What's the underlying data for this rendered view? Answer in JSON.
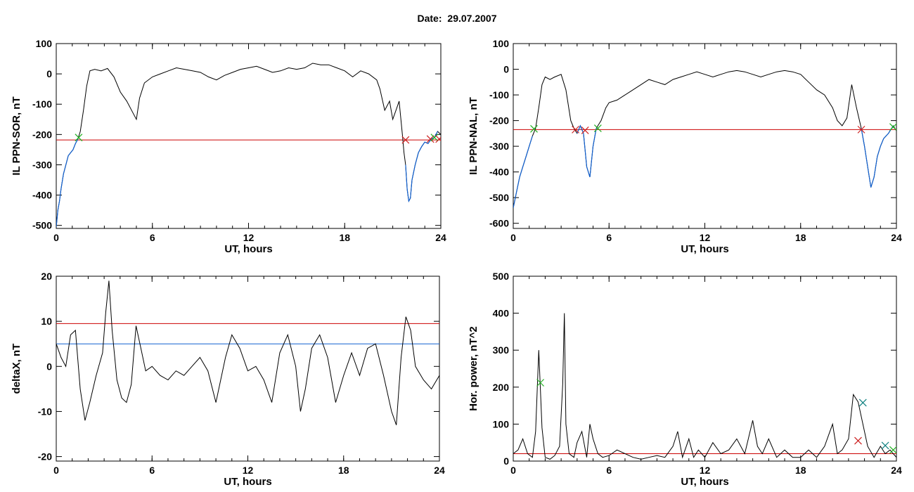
{
  "header": {
    "date_label": "Date:",
    "date_value": "29.07.2007"
  },
  "colors": {
    "curve": "#000000",
    "threshold": "#cc0000",
    "blue": "#1060d0",
    "green_marker": "#20b020",
    "red_marker": "#cc2020",
    "blue_marker": "#108080"
  },
  "chart_data": [
    {
      "id": "sor",
      "type": "line",
      "title": "",
      "xlabel": "UT, hours",
      "ylabel": "IL PPN-SOR, nT",
      "xlim": [
        0,
        24
      ],
      "ylim": [
        -510,
        100
      ],
      "xticks": [
        0,
        6,
        12,
        18,
        24
      ],
      "yticks": [
        -500,
        -400,
        -300,
        -200,
        -100,
        0,
        100
      ],
      "threshold": -218,
      "series": [
        {
          "x": [
            0,
            0.1,
            0.2,
            0.3,
            0.45,
            0.6,
            0.75,
            0.9,
            1.05,
            1.2,
            1.35,
            1.5,
            1.7,
            1.9,
            2.1,
            2.4,
            2.8,
            3.2,
            3.6,
            4.0,
            4.4,
            4.8,
            5.0,
            5.2,
            5.5,
            6.0,
            6.5,
            7.0,
            7.5,
            8.0,
            8.5,
            9.0,
            9.5,
            10.0,
            10.5,
            11.0,
            11.5,
            12.0,
            12.5,
            13.0,
            13.5,
            14.0,
            14.5,
            15.0,
            15.5,
            16.0,
            16.5,
            17.0,
            17.5,
            18.0,
            18.5,
            19.0,
            19.5,
            20.0,
            20.2,
            20.5,
            20.8,
            21.0,
            21.2,
            21.4,
            21.6,
            21.7,
            21.8,
            21.9,
            22.0,
            22.1,
            22.2,
            22.4,
            22.6,
            22.8,
            23.0,
            23.2,
            23.4,
            23.6,
            23.8,
            24.0
          ],
          "y": [
            -505,
            -450,
            -420,
            -380,
            -330,
            -300,
            -270,
            -260,
            -250,
            -230,
            -215,
            -190,
            -120,
            -40,
            10,
            15,
            10,
            18,
            -10,
            -60,
            -90,
            -130,
            -150,
            -80,
            -30,
            -10,
            0,
            10,
            20,
            15,
            10,
            5,
            -10,
            -20,
            -5,
            5,
            15,
            20,
            25,
            15,
            5,
            10,
            20,
            15,
            20,
            35,
            30,
            30,
            20,
            10,
            -10,
            10,
            0,
            -20,
            -50,
            -120,
            -90,
            -150,
            -120,
            -90,
            -200,
            -260,
            -300,
            -380,
            -420,
            -410,
            -350,
            -300,
            -260,
            -240,
            -225,
            -230,
            -215,
            -210,
            -190,
            -200
          ]
        }
      ],
      "markers": [
        {
          "x": 1.4,
          "y": -210,
          "color": "green"
        },
        {
          "x": 21.8,
          "y": -218,
          "color": "red"
        },
        {
          "x": 23.35,
          "y": -215,
          "color": "red"
        },
        {
          "x": 23.6,
          "y": -210,
          "color": "green"
        },
        {
          "x": 23.9,
          "y": -215,
          "color": "red"
        }
      ],
      "blue_segments": [
        [
          0,
          1.4
        ],
        [
          21.8,
          23.9
        ]
      ]
    },
    {
      "id": "nal",
      "type": "line",
      "title": "",
      "xlabel": "UT, hours",
      "ylabel": "IL PPN-NAL, nT",
      "xlim": [
        0,
        24
      ],
      "ylim": [
        -620,
        100
      ],
      "xticks": [
        0,
        6,
        12,
        18,
        24
      ],
      "yticks": [
        -600,
        -500,
        -400,
        -300,
        -200,
        -100,
        0,
        100
      ],
      "threshold": -235,
      "series": [
        {
          "x": [
            0,
            0.2,
            0.4,
            0.6,
            0.8,
            1.0,
            1.2,
            1.4,
            1.6,
            1.8,
            2.0,
            2.3,
            2.6,
            3.0,
            3.3,
            3.6,
            3.8,
            4.0,
            4.2,
            4.4,
            4.6,
            4.8,
            5.0,
            5.2,
            5.5,
            5.8,
            6.0,
            6.5,
            7.0,
            7.5,
            8.0,
            8.5,
            9.0,
            9.5,
            10.0,
            10.5,
            11.0,
            11.5,
            12.0,
            12.5,
            13.0,
            13.5,
            14.0,
            14.5,
            15.0,
            15.5,
            16.0,
            16.5,
            17.0,
            17.5,
            18.0,
            18.5,
            19.0,
            19.5,
            20.0,
            20.3,
            20.6,
            20.9,
            21.2,
            21.5,
            21.8,
            22.0,
            22.2,
            22.4,
            22.6,
            22.8,
            23.0,
            23.2,
            23.5,
            23.8,
            24.0
          ],
          "y": [
            -540,
            -480,
            -420,
            -380,
            -340,
            -300,
            -260,
            -230,
            -150,
            -60,
            -30,
            -40,
            -30,
            -20,
            -80,
            -200,
            -230,
            -250,
            -220,
            -250,
            -380,
            -420,
            -300,
            -230,
            -200,
            -150,
            -130,
            -120,
            -100,
            -80,
            -60,
            -40,
            -50,
            -60,
            -40,
            -30,
            -20,
            -10,
            -20,
            -30,
            -20,
            -10,
            -5,
            -10,
            -20,
            -30,
            -20,
            -10,
            -5,
            -10,
            -20,
            -50,
            -80,
            -100,
            -150,
            -200,
            -220,
            -190,
            -60,
            -150,
            -230,
            -300,
            -380,
            -460,
            -420,
            -340,
            -300,
            -270,
            -250,
            -220,
            -240
          ]
        }
      ],
      "markers": [
        {
          "x": 1.3,
          "y": -232,
          "color": "green"
        },
        {
          "x": 3.9,
          "y": -235,
          "color": "red"
        },
        {
          "x": 4.5,
          "y": -238,
          "color": "red"
        },
        {
          "x": 5.3,
          "y": -230,
          "color": "green"
        },
        {
          "x": 21.8,
          "y": -235,
          "color": "red"
        },
        {
          "x": 23.8,
          "y": -225,
          "color": "green"
        }
      ],
      "blue_segments": [
        [
          0,
          1.3
        ],
        [
          3.9,
          5.3
        ],
        [
          21.8,
          23.8
        ]
      ]
    },
    {
      "id": "deltax",
      "type": "line",
      "title": "",
      "xlabel": "UT, hours",
      "ylabel": "deltaX, nT",
      "xlim": [
        0,
        24
      ],
      "ylim": [
        -21,
        20
      ],
      "xticks": [
        0,
        6,
        12,
        18,
        24
      ],
      "yticks": [
        -20,
        -10,
        0,
        10,
        20
      ],
      "thresholds": [
        {
          "value": 9.5,
          "color": "red"
        },
        {
          "value": 5,
          "color": "blue"
        }
      ],
      "series": [
        {
          "x": [
            0,
            0.3,
            0.6,
            0.9,
            1.2,
            1.5,
            1.8,
            2.1,
            2.5,
            2.9,
            3.1,
            3.3,
            3.5,
            3.8,
            4.1,
            4.4,
            4.7,
            5.0,
            5.3,
            5.6,
            6.0,
            6.5,
            7.0,
            7.5,
            8.0,
            8.5,
            9.0,
            9.5,
            10.0,
            10.3,
            10.6,
            11.0,
            11.5,
            12.0,
            12.5,
            13.0,
            13.5,
            14.0,
            14.5,
            15.0,
            15.3,
            15.6,
            16.0,
            16.5,
            17.0,
            17.5,
            18.0,
            18.5,
            19.0,
            19.5,
            20.0,
            20.5,
            21.0,
            21.3,
            21.6,
            21.9,
            22.2,
            22.5,
            23.0,
            23.5,
            24.0
          ],
          "y": [
            5,
            2,
            0,
            7,
            8,
            -5,
            -12,
            -8,
            -2,
            3,
            12,
            19,
            8,
            -3,
            -7,
            -8,
            -4,
            9,
            4,
            -1,
            0,
            -2,
            -3,
            -1,
            -2,
            0,
            2,
            -1,
            -8,
            -3,
            2,
            7,
            4,
            -1,
            0,
            -3,
            -8,
            3,
            7,
            0,
            -10,
            -5,
            4,
            7,
            2,
            -8,
            -2,
            3,
            -2,
            4,
            5,
            -2,
            -10,
            -13,
            2,
            11,
            8,
            0,
            -3,
            -5,
            -2
          ]
        }
      ]
    },
    {
      "id": "power",
      "type": "line",
      "title": "",
      "xlabel": "UT, hours",
      "ylabel": "Hor. power, nT^2",
      "xlim": [
        0,
        24
      ],
      "ylim": [
        0,
        500
      ],
      "xticks": [
        0,
        6,
        12,
        18,
        24
      ],
      "yticks": [
        0,
        100,
        200,
        300,
        400,
        500
      ],
      "threshold": 20,
      "series": [
        {
          "x": [
            0,
            0.3,
            0.6,
            0.9,
            1.2,
            1.4,
            1.6,
            1.8,
            2.0,
            2.3,
            2.6,
            2.9,
            3.1,
            3.2,
            3.3,
            3.5,
            3.8,
            4.0,
            4.3,
            4.6,
            4.8,
            5.0,
            5.3,
            5.6,
            6.0,
            6.5,
            7.0,
            7.5,
            8.0,
            8.5,
            9.0,
            9.5,
            10.0,
            10.3,
            10.6,
            11.0,
            11.3,
            11.6,
            12.0,
            12.5,
            13.0,
            13.5,
            14.0,
            14.5,
            15.0,
            15.3,
            15.6,
            16.0,
            16.5,
            17.0,
            17.5,
            18.0,
            18.5,
            19.0,
            19.5,
            20.0,
            20.3,
            20.6,
            21.0,
            21.3,
            21.6,
            21.9,
            22.2,
            22.6,
            23.0,
            23.3,
            23.6,
            24.0
          ],
          "y": [
            20,
            30,
            60,
            20,
            10,
            80,
            300,
            90,
            10,
            5,
            15,
            40,
            210,
            400,
            100,
            20,
            10,
            50,
            80,
            10,
            100,
            60,
            20,
            10,
            15,
            30,
            20,
            10,
            5,
            10,
            15,
            10,
            40,
            80,
            10,
            60,
            10,
            30,
            10,
            50,
            20,
            30,
            60,
            20,
            110,
            40,
            20,
            60,
            10,
            30,
            10,
            10,
            30,
            10,
            40,
            100,
            20,
            30,
            60,
            180,
            160,
            100,
            40,
            10,
            40,
            20,
            30,
            10
          ]
        }
      ],
      "markers": [
        {
          "x": 1.7,
          "y": 212,
          "color": "green"
        },
        {
          "x": 21.6,
          "y": 55,
          "color": "red"
        },
        {
          "x": 21.9,
          "y": 158,
          "color": "blue"
        },
        {
          "x": 23.3,
          "y": 42,
          "color": "blue"
        },
        {
          "x": 23.8,
          "y": 30,
          "color": "green"
        }
      ]
    }
  ]
}
